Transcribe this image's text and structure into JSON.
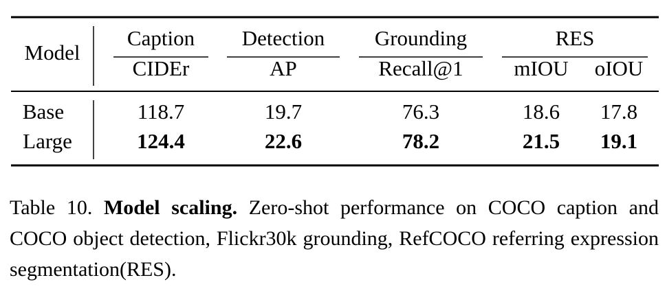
{
  "table": {
    "model_header": "Model",
    "groups": [
      "Caption",
      "Detection",
      "Grounding",
      "RES"
    ],
    "metrics": [
      "CIDEr",
      "AP",
      "Recall@1",
      "mIOU",
      "oIOU"
    ],
    "rows": [
      [
        "Base",
        "118.7",
        "19.7",
        "76.3",
        "18.6",
        "17.8"
      ],
      [
        "Large",
        "124.4",
        "22.6",
        "78.2",
        "21.5",
        "19.1"
      ]
    ]
  },
  "caption": {
    "label": "Table 10.",
    "title": "Model scaling.",
    "text": "Zero-shot performance on COCO caption and COCO object detection, Flickr30k grounding, RefCOCO referring expression segmentation(RES)."
  }
}
